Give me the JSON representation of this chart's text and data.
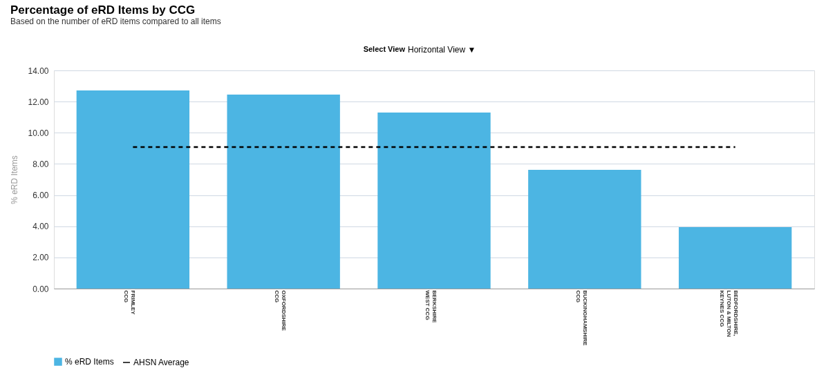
{
  "chart_data": {
    "type": "bar",
    "title": "Percentage of eRD Items by CCG",
    "subtitle": "Based on the number of eRD items compared to all items",
    "ylabel": "% eRD Items",
    "categories": [
      "FRIMLEY\nCCG",
      "OXFORDSHIRE\nCCG",
      "BERKSHIRE\nWEST CCG",
      "BUCKINGHAMSHIRE\nCCG",
      "BEDFORDSHIRE,\nLUTON & MILTON\nKEYNES CCG"
    ],
    "series": [
      {
        "name": "% eRD Items",
        "color": "#4cb5e3",
        "values": [
          12.72,
          12.45,
          11.3,
          7.62,
          3.94
        ]
      },
      {
        "name": "AHSN Average",
        "type": "line",
        "color": "#000000",
        "line_style": "dashed",
        "values": [
          9.08,
          9.08,
          9.08,
          9.08,
          9.08
        ]
      }
    ],
    "ylim": [
      0,
      14
    ],
    "yticks": [
      {
        "value": 0,
        "label": "0.00"
      },
      {
        "value": 2,
        "label": "2.00"
      },
      {
        "value": 4,
        "label": "4.00"
      },
      {
        "value": 6,
        "label": "6.00"
      },
      {
        "value": 8,
        "label": "8.00"
      },
      {
        "value": 10,
        "label": "10.00"
      },
      {
        "value": 12,
        "label": "12.00"
      },
      {
        "value": 14,
        "label": "14.00"
      }
    ],
    "grid": "y",
    "legend": "bottom",
    "annotations": [
      "Select View",
      "Horizontal View ▼"
    ]
  }
}
